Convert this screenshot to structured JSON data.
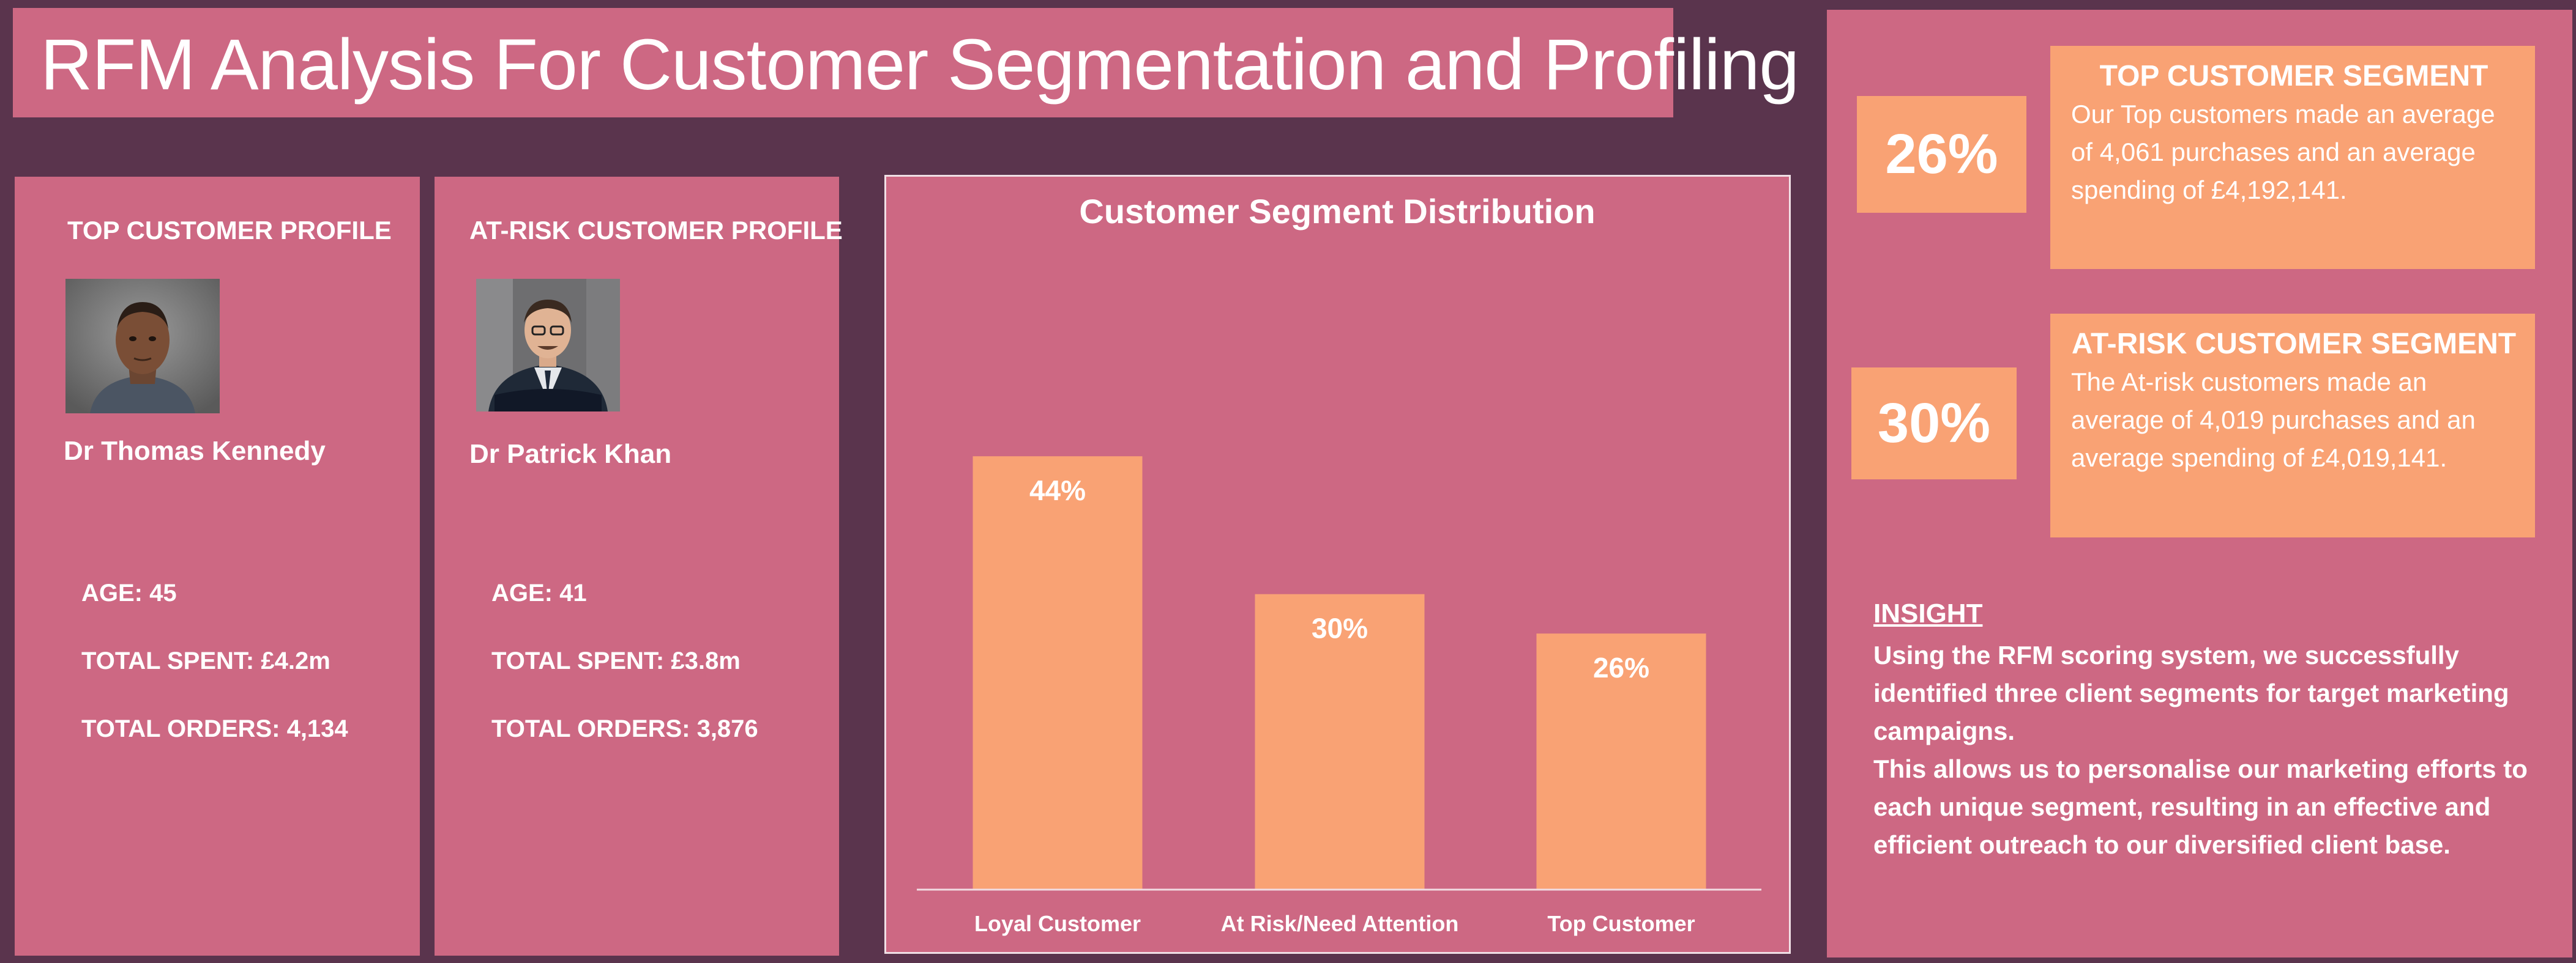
{
  "title": "RFM Analysis For Customer Segmentation and Profiling",
  "top_profile": {
    "heading": "TOP CUSTOMER PROFILE",
    "name": "Dr Thomas Kennedy",
    "age": "AGE: 45",
    "total_spent": "TOTAL SPENT: £4.2m",
    "total_orders": "TOTAL ORDERS: 4,134"
  },
  "risk_profile": {
    "heading": "AT-RISK CUSTOMER PROFILE",
    "name": "Dr Patrick Khan",
    "age": "AGE: 41",
    "total_spent": "TOTAL SPENT: £3.8m",
    "total_orders": "TOTAL ORDERS: 3,876"
  },
  "chart_data": {
    "type": "bar",
    "title": "Customer Segment Distribution",
    "categories": [
      "Loyal Customer",
      "At Risk/Need Attention",
      "Top Customer"
    ],
    "values": [
      44,
      30,
      26
    ],
    "value_labels": [
      "44%",
      "30%",
      "26%"
    ],
    "unit": "%",
    "ylim": [
      0,
      55
    ],
    "grid": false,
    "legend": "none",
    "bar_color": "#f9a274",
    "background": "#cd6883"
  },
  "top_segment": {
    "percent": "26%",
    "title": "TOP CUSTOMER SEGMENT",
    "description": "Our Top customers made an average of 4,061 purchases and an average spending of £4,192,141."
  },
  "risk_segment": {
    "percent": "30%",
    "title": "AT-RISK CUSTOMER SEGMENT",
    "description": "The At-risk customers made an average of 4,019 purchases and an average spending of £4,019,141."
  },
  "insight": {
    "heading": "INSIGHT",
    "body": "Using the RFM scoring system, we successfully identified three client segments for target marketing campaigns.\nThis allows us to personalise our marketing efforts to each unique segment, resulting in an effective and efficient outreach to our diversified client base."
  },
  "colors": {
    "background": "#5a344d",
    "panel": "#cd6883",
    "accent": "#f9a274",
    "text": "#ffffff"
  }
}
